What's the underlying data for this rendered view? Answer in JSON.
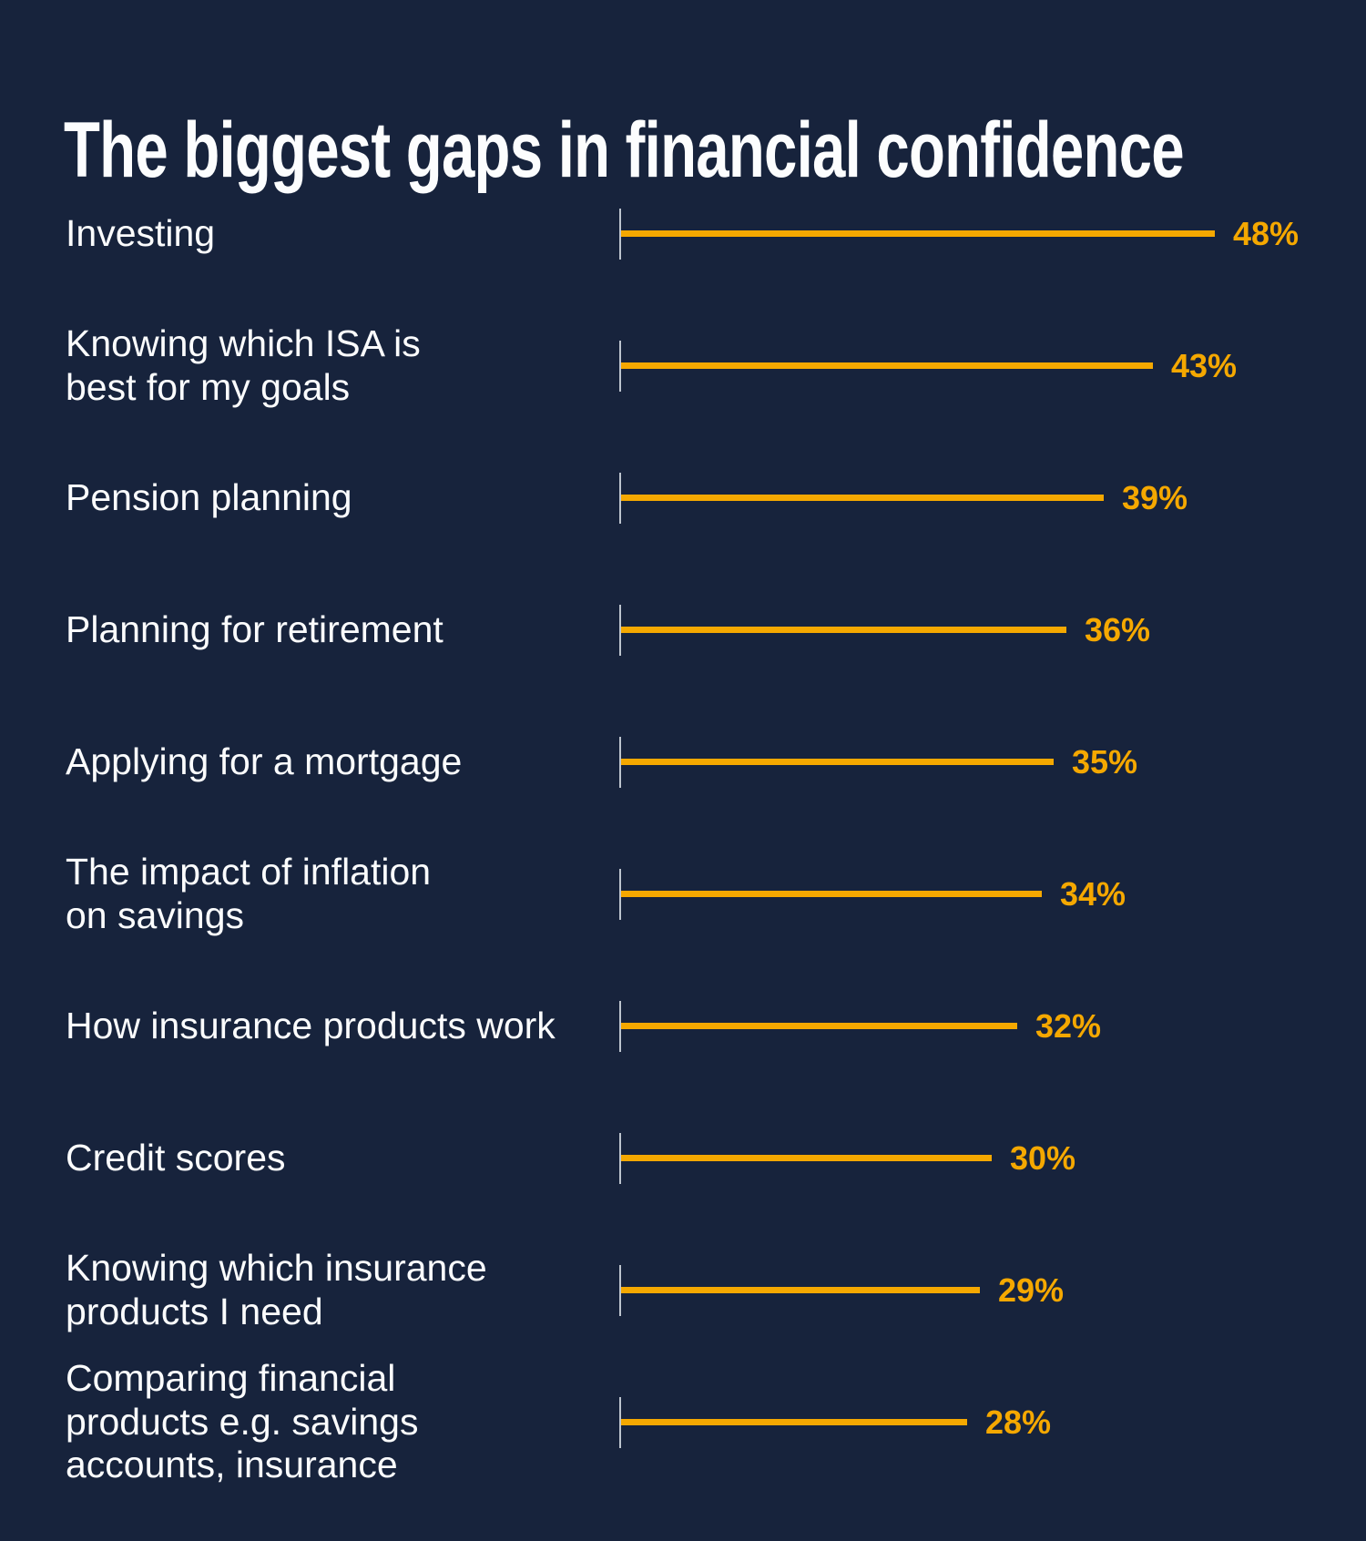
{
  "title": "The biggest gaps in financial confidence",
  "colors": {
    "background": "#17233C",
    "bar": "#F5A800",
    "value_text": "#F5A800",
    "axis_tick": "#BDC4CE",
    "title_text": "#FCFDFE",
    "label_text": "#FBFCFD"
  },
  "chart_data": {
    "type": "bar",
    "orientation": "horizontal",
    "title": "The biggest gaps in financial confidence",
    "categories": [
      "Investing",
      "Knowing which ISA is best for my goals",
      "Pension planning",
      "Planning for retirement",
      "Applying for a mortgage",
      "The impact of inflation on savings",
      "How insurance products work",
      "Credit scores",
      "Knowing which insurance products I need",
      "Comparing financial products e.g. savings accounts, insurance"
    ],
    "values": [
      48,
      43,
      39,
      36,
      35,
      34,
      32,
      30,
      29,
      28
    ],
    "value_labels": [
      "48%",
      "43%",
      "39%",
      "36%",
      "35%",
      "34%",
      "32%",
      "30%",
      "29%",
      "28%"
    ],
    "unit": "%",
    "xlim": [
      0,
      52
    ],
    "grid": false,
    "legend": false,
    "value_label_position": "end-of-bar"
  },
  "rows": [
    {
      "lines": [
        "Investing"
      ],
      "value_label": "48%"
    },
    {
      "lines": [
        "Knowing which ISA is",
        "best for my goals"
      ],
      "value_label": "43%"
    },
    {
      "lines": [
        "Pension planning"
      ],
      "value_label": "39%"
    },
    {
      "lines": [
        "Planning for retirement"
      ],
      "value_label": "36%"
    },
    {
      "lines": [
        "Applying for a mortgage"
      ],
      "value_label": "35%"
    },
    {
      "lines": [
        "The impact of inflation",
        "on savings"
      ],
      "value_label": "34%"
    },
    {
      "lines": [
        "How insurance products work"
      ],
      "value_label": "32%"
    },
    {
      "lines": [
        "Credit scores"
      ],
      "value_label": "30%"
    },
    {
      "lines": [
        "Knowing which insurance",
        "products I need"
      ],
      "value_label": "29%"
    },
    {
      "lines": [
        "Comparing financial",
        "products e.g. savings",
        "accounts, insurance"
      ],
      "value_label": "28%"
    }
  ]
}
